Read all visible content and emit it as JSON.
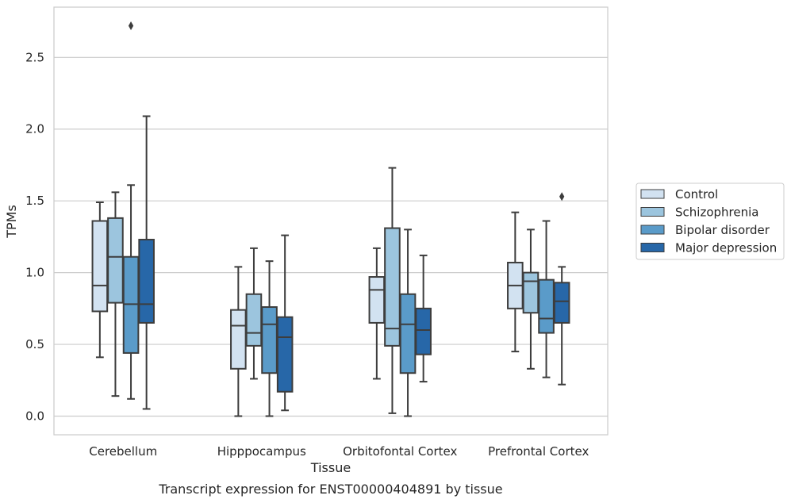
{
  "chart_data": {
    "type": "box",
    "caption": "Transcript expression for ENST00000404891 by tissue",
    "xlabel": "Tissue",
    "ylabel": "TPMs",
    "ylim": [
      -0.13,
      2.85
    ],
    "yticks": [
      0.0,
      0.5,
      1.0,
      1.5,
      2.0,
      2.5
    ],
    "ytick_labels": [
      "0.0",
      "0.5",
      "1.0",
      "1.5",
      "2.0",
      "2.5"
    ],
    "grid": "horizontal",
    "legend_position": "right",
    "categories": [
      "Cerebellum",
      "Hipppocampus",
      "Orbitofontal Cortex",
      "Prefrontal Cortex"
    ],
    "series": [
      {
        "name": "Control",
        "color": "#d2e2f1",
        "boxes": [
          {
            "whislo": 0.41,
            "q1": 0.73,
            "med": 0.91,
            "q3": 1.36,
            "whishi": 1.49,
            "fliers": []
          },
          {
            "whislo": 0.0,
            "q1": 0.33,
            "med": 0.63,
            "q3": 0.74,
            "whishi": 1.04,
            "fliers": []
          },
          {
            "whislo": 0.26,
            "q1": 0.65,
            "med": 0.88,
            "q3": 0.97,
            "whishi": 1.17,
            "fliers": []
          },
          {
            "whislo": 0.45,
            "q1": 0.75,
            "med": 0.91,
            "q3": 1.07,
            "whishi": 1.42,
            "fliers": []
          }
        ]
      },
      {
        "name": "Schizophrenia",
        "color": "#9cc5de",
        "boxes": [
          {
            "whislo": 0.14,
            "q1": 0.79,
            "med": 1.11,
            "q3": 1.38,
            "whishi": 1.56,
            "fliers": []
          },
          {
            "whislo": 0.26,
            "q1": 0.49,
            "med": 0.58,
            "q3": 0.85,
            "whishi": 1.17,
            "fliers": []
          },
          {
            "whislo": 0.02,
            "q1": 0.49,
            "med": 0.61,
            "q3": 1.31,
            "whishi": 1.73,
            "fliers": []
          },
          {
            "whislo": 0.33,
            "q1": 0.72,
            "med": 0.94,
            "q3": 1.0,
            "whishi": 1.3,
            "fliers": []
          }
        ]
      },
      {
        "name": "Bipolar disorder",
        "color": "#5a9bc9",
        "boxes": [
          {
            "whislo": 0.12,
            "q1": 0.44,
            "med": 0.78,
            "q3": 1.11,
            "whishi": 1.61,
            "fliers": [
              2.72
            ]
          },
          {
            "whislo": 0.0,
            "q1": 0.3,
            "med": 0.64,
            "q3": 0.76,
            "whishi": 1.08,
            "fliers": []
          },
          {
            "whislo": 0.0,
            "q1": 0.3,
            "med": 0.64,
            "q3": 0.85,
            "whishi": 1.3,
            "fliers": []
          },
          {
            "whislo": 0.27,
            "q1": 0.58,
            "med": 0.68,
            "q3": 0.95,
            "whishi": 1.36,
            "fliers": []
          }
        ]
      },
      {
        "name": "Major depression",
        "color": "#2767a8",
        "boxes": [
          {
            "whislo": 0.05,
            "q1": 0.65,
            "med": 0.78,
            "q3": 1.23,
            "whishi": 2.09,
            "fliers": []
          },
          {
            "whislo": 0.04,
            "q1": 0.17,
            "med": 0.55,
            "q3": 0.69,
            "whishi": 1.26,
            "fliers": []
          },
          {
            "whislo": 0.24,
            "q1": 0.43,
            "med": 0.6,
            "q3": 0.75,
            "whishi": 1.12,
            "fliers": []
          },
          {
            "whislo": 0.22,
            "q1": 0.65,
            "med": 0.8,
            "q3": 0.93,
            "whishi": 1.04,
            "fliers": [
              1.53
            ]
          }
        ]
      }
    ]
  }
}
